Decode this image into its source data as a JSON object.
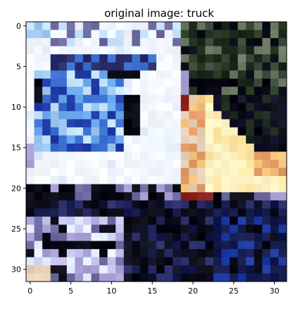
{
  "chart_data": {
    "type": "heatmap",
    "title": "original image: truck",
    "xlabel": "",
    "ylabel": "",
    "xlim": [
      -0.5,
      31.5
    ],
    "ylim": [
      31.5,
      -0.5
    ],
    "xticks": [
      0,
      5,
      10,
      15,
      20,
      25,
      30
    ],
    "yticks": [
      0,
      5,
      10,
      15,
      20,
      25,
      30
    ],
    "xtick_labels": [
      "0",
      "5",
      "10",
      "15",
      "20",
      "25",
      "30"
    ],
    "ytick_labels": [
      "0",
      "5",
      "10",
      "15",
      "20",
      "25",
      "30"
    ],
    "grid": false,
    "image_size": [
      32,
      32
    ],
    "regions": [
      {
        "label": "sky-bright",
        "x": [
          0,
          19
        ],
        "y": [
          0,
          3
        ],
        "color": "#f4f8ff"
      },
      {
        "label": "trees-dark",
        "x": [
          19,
          31
        ],
        "y": [
          0,
          8
        ],
        "color": "#1c2a1e"
      },
      {
        "label": "cab-window-blue",
        "x": [
          2,
          11
        ],
        "y": [
          6,
          15
        ],
        "color": "#4b86d8"
      },
      {
        "label": "cab-body-white",
        "x": [
          0,
          19
        ],
        "y": [
          3,
          19
        ],
        "color": "#f2f6ff"
      },
      {
        "label": "cargo-cream",
        "x": [
          19,
          31
        ],
        "y": [
          9,
          20
        ],
        "color": "#fff4c4"
      },
      {
        "label": "cargo-orange-edge",
        "x": [
          19,
          21
        ],
        "y": [
          9,
          21
        ],
        "color": "#e39a63"
      },
      {
        "label": "chassis-dark",
        "x": [
          0,
          31
        ],
        "y": [
          20,
          31
        ],
        "color": "#0b0b1a"
      },
      {
        "label": "grille-light",
        "x": [
          0,
          12
        ],
        "y": [
          24,
          31
        ],
        "color": "#c9c8ef"
      },
      {
        "label": "shadow-navy",
        "x": [
          19,
          31
        ],
        "y": [
          22,
          31
        ],
        "color": "#141a4c"
      }
    ],
    "pixel_palette": [
      "#f4f8ff",
      "#e6f0ff",
      "#c9e6ff",
      "#9ec8f2",
      "#6aa8ec",
      "#3a6fd1",
      "#1e3aa6",
      "#2a2f6b",
      "#0a0a14",
      "#111126",
      "#1c2a1e",
      "#2b3b24",
      "#fff4c4",
      "#ffe8a6",
      "#f0c27a",
      "#e39a63",
      "#8a1f1c",
      "#c9c8ef",
      "#a9a0d6",
      "#6d6aa1",
      "#e8d0b8",
      "#141a4c"
    ]
  }
}
